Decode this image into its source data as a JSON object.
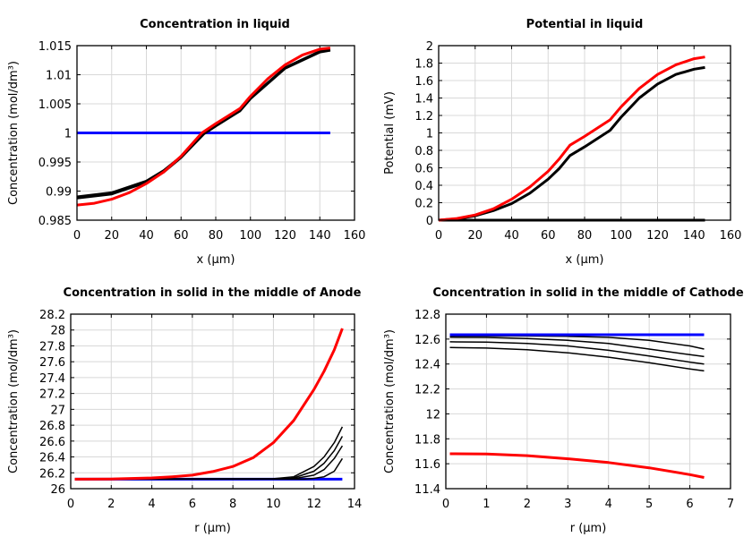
{
  "chart_data": [
    {
      "type": "line",
      "title": "Concentration in liquid",
      "xlabel": "x (µm)",
      "ylabel": "Concentration (mol/dm³)",
      "xlim": [
        0,
        160
      ],
      "ylim": [
        0.985,
        1.015
      ],
      "xticks": [
        "0",
        "20",
        "40",
        "60",
        "80",
        "100",
        "120",
        "140",
        "160"
      ],
      "yticks": [
        "0.985",
        "0.99",
        "0.995",
        "1",
        "1.005",
        "1.01",
        "1.015"
      ],
      "grid": true,
      "series": [
        {
          "color": "#0000ff",
          "x": [
            0,
            146
          ],
          "y": [
            1.0,
            1.0
          ]
        },
        {
          "color": "#000000",
          "x": [
            0,
            20,
            40,
            50,
            60,
            73,
            80,
            94,
            100,
            120,
            140,
            146
          ],
          "y": [
            0.989,
            0.9897,
            0.9917,
            0.9935,
            0.9959,
            0.9999,
            1.0013,
            1.0039,
            1.006,
            1.0112,
            1.014,
            1.0143
          ]
        },
        {
          "color": "#000000",
          "x": [
            0,
            20,
            40,
            50,
            60,
            73,
            80,
            94,
            100,
            120,
            140,
            146
          ],
          "y": [
            0.9888,
            0.9895,
            0.9915,
            0.9933,
            0.9958,
            0.9998,
            1.0012,
            1.0038,
            1.0059,
            1.0111,
            1.0139,
            1.0142
          ]
        },
        {
          "color": "#ff0000",
          "x": [
            0,
            10,
            20,
            30,
            40,
            50,
            60,
            66,
            72,
            80,
            94,
            100,
            110,
            120,
            130,
            140,
            146
          ],
          "y": [
            0.9876,
            0.9879,
            0.9886,
            0.9897,
            0.9913,
            0.9933,
            0.996,
            0.998,
            1.0,
            1.0016,
            1.0042,
            1.0063,
            1.0093,
            1.0117,
            1.0134,
            1.0144,
            1.0146
          ]
        }
      ]
    },
    {
      "type": "line",
      "title": "Potential in liquid",
      "xlabel": "x (µm)",
      "ylabel": "Potential (mV)",
      "xlim": [
        0,
        160
      ],
      "ylim": [
        0,
        2
      ],
      "xticks": [
        "0",
        "20",
        "40",
        "60",
        "80",
        "100",
        "120",
        "140",
        "160"
      ],
      "yticks": [
        "0",
        "0.2",
        "0.4",
        "0.6",
        "0.8",
        "1",
        "1.2",
        "1.4",
        "1.6",
        "1.8",
        "2"
      ],
      "grid": true,
      "series": [
        {
          "color": "#0000ff",
          "x": [
            0,
            146
          ],
          "y": [
            0,
            0
          ]
        },
        {
          "color": "#000000",
          "x": [
            0,
            146
          ],
          "y": [
            0,
            0
          ]
        },
        {
          "color": "#000000",
          "x": [
            0,
            10,
            20,
            30,
            40,
            50,
            60,
            66,
            72,
            80,
            94,
            100,
            110,
            120,
            130,
            140,
            146
          ],
          "y": [
            0,
            0.015,
            0.05,
            0.11,
            0.19,
            0.31,
            0.47,
            0.59,
            0.74,
            0.84,
            1.03,
            1.18,
            1.4,
            1.56,
            1.67,
            1.73,
            1.75
          ]
        },
        {
          "color": "#ff0000",
          "x": [
            0,
            10,
            20,
            30,
            40,
            50,
            60,
            66,
            72,
            80,
            94,
            100,
            110,
            120,
            130,
            140,
            146
          ],
          "y": [
            0,
            0.02,
            0.06,
            0.13,
            0.24,
            0.38,
            0.56,
            0.7,
            0.86,
            0.96,
            1.15,
            1.3,
            1.51,
            1.67,
            1.78,
            1.85,
            1.87
          ]
        }
      ]
    },
    {
      "type": "line",
      "title": "Concentration in solid in the middle of Anode",
      "xlabel": "r (µm)",
      "ylabel": "Concentration (mol/dm³)",
      "xlim": [
        0,
        14
      ],
      "ylim": [
        26,
        28.2
      ],
      "xticks": [
        "0",
        "2",
        "4",
        "6",
        "8",
        "10",
        "12",
        "14"
      ],
      "yticks": [
        "26",
        "26.2",
        "26.4",
        "26.6",
        "26.8",
        "27",
        "27.2",
        "27.4",
        "27.6",
        "27.8",
        "28",
        "28.2"
      ],
      "grid": true,
      "series": [
        {
          "color": "#0000ff",
          "x": [
            0.2,
            13.4
          ],
          "y": [
            26.12,
            26.12
          ]
        },
        {
          "color": "#000000",
          "x": [
            0.2,
            10,
            11,
            12,
            12.5,
            13,
            13.4
          ],
          "y": [
            26.12,
            26.125,
            26.15,
            26.28,
            26.4,
            26.58,
            26.78
          ]
        },
        {
          "color": "#000000",
          "x": [
            0.2,
            10.5,
            11,
            12,
            12.5,
            13,
            13.4
          ],
          "y": [
            26.12,
            26.122,
            26.135,
            26.22,
            26.32,
            26.48,
            26.66
          ]
        },
        {
          "color": "#000000",
          "x": [
            0.2,
            11,
            12,
            12.5,
            13,
            13.4
          ],
          "y": [
            26.12,
            26.125,
            26.17,
            26.24,
            26.38,
            26.54
          ]
        },
        {
          "color": "#000000",
          "x": [
            0.2,
            11.5,
            12,
            12.5,
            13,
            13.4
          ],
          "y": [
            26.12,
            26.12,
            26.13,
            26.15,
            26.22,
            26.38
          ]
        },
        {
          "color": "#ff0000",
          "x": [
            0.2,
            2,
            4,
            5,
            6,
            7,
            8,
            9,
            10,
            11,
            12,
            12.5,
            13,
            13.4
          ],
          "y": [
            26.12,
            26.122,
            26.135,
            26.15,
            26.17,
            26.215,
            26.28,
            26.39,
            26.58,
            26.86,
            27.25,
            27.48,
            27.75,
            28.02
          ]
        }
      ]
    },
    {
      "type": "line",
      "title": "Concentration in solid in the middle of Cathode",
      "xlabel": "r (µm)",
      "ylabel": "Concentration (mol/dm³)",
      "xlim": [
        0,
        7
      ],
      "ylim": [
        11.4,
        12.8
      ],
      "xticks": [
        "0",
        "1",
        "2",
        "3",
        "4",
        "5",
        "6",
        "7"
      ],
      "yticks": [
        "11.4",
        "11.6",
        "11.8",
        "12",
        "12.2",
        "12.4",
        "12.6",
        "12.8"
      ],
      "grid": true,
      "series": [
        {
          "color": "#000000",
          "x": [
            0.1,
            2,
            3,
            4,
            5,
            6,
            6.35
          ],
          "y": [
            12.625,
            12.625,
            12.622,
            12.614,
            12.59,
            12.545,
            12.52
          ]
        },
        {
          "color": "#000000",
          "x": [
            0.1,
            1,
            2,
            3,
            4,
            5,
            6,
            6.35
          ],
          "y": [
            12.615,
            12.613,
            12.605,
            12.59,
            12.565,
            12.52,
            12.475,
            12.46
          ]
        },
        {
          "color": "#000000",
          "x": [
            0.1,
            1,
            2,
            3,
            4,
            5,
            6,
            6.35
          ],
          "y": [
            12.578,
            12.575,
            12.565,
            12.545,
            12.51,
            12.465,
            12.415,
            12.4
          ]
        },
        {
          "color": "#000000",
          "x": [
            0.1,
            1,
            2,
            3,
            4,
            5,
            6,
            6.35
          ],
          "y": [
            12.532,
            12.528,
            12.515,
            12.49,
            12.455,
            12.41,
            12.36,
            12.345
          ]
        },
        {
          "color": "#0000ff",
          "x": [
            0.1,
            6.35
          ],
          "y": [
            12.635,
            12.635
          ]
        },
        {
          "color": "#ff0000",
          "x": [
            0.1,
            1,
            2,
            3,
            4,
            5,
            6,
            6.35
          ],
          "y": [
            11.68,
            11.678,
            11.665,
            11.64,
            11.61,
            11.567,
            11.513,
            11.49
          ]
        }
      ]
    }
  ]
}
